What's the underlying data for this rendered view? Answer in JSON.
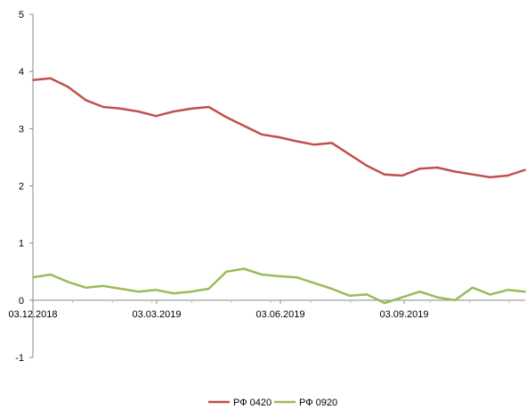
{
  "chart_data": {
    "type": "line",
    "ylim": [
      -1,
      5
    ],
    "yticks": [
      "-1",
      "0",
      "1",
      "2",
      "3",
      "4",
      "5"
    ],
    "xticks": [
      "03.12.2018",
      "03.03.2019",
      "03.06.2019",
      "03.09.2019"
    ],
    "grid": false,
    "legend": "bottom",
    "x": [
      "03.12.2018",
      "17.12.2018",
      "31.12.2018",
      "14.01.2019",
      "28.01.2019",
      "11.02.2019",
      "25.02.2019",
      "11.03.2019",
      "25.03.2019",
      "08.04.2019",
      "22.04.2019",
      "06.05.2019",
      "20.05.2019",
      "03.06.2019",
      "17.06.2019",
      "01.07.2019",
      "15.07.2019",
      "29.07.2019",
      "12.08.2019",
      "26.08.2019",
      "09.09.2019",
      "23.09.2019",
      "07.10.2019",
      "21.10.2019",
      "04.11.2019",
      "18.11.2019",
      "02.12.2019",
      "16.12.2019",
      "30.12.2019"
    ],
    "series": [
      {
        "name": "РФ 0420",
        "color": "#c0504d",
        "values": [
          3.85,
          3.88,
          3.73,
          3.5,
          3.38,
          3.35,
          3.3,
          3.22,
          3.3,
          3.35,
          3.38,
          3.2,
          3.05,
          2.9,
          2.85,
          2.78,
          2.72,
          2.75,
          2.55,
          2.35,
          2.2,
          2.18,
          2.3,
          2.32,
          2.25,
          2.2,
          2.15,
          2.18,
          2.28
        ]
      },
      {
        "name": "РФ 0920",
        "color": "#9bbb59",
        "values": [
          0.4,
          0.45,
          0.32,
          0.22,
          0.25,
          0.2,
          0.15,
          0.18,
          0.12,
          0.15,
          0.2,
          0.5,
          0.55,
          0.45,
          0.42,
          0.4,
          0.3,
          0.2,
          0.08,
          0.1,
          -0.05,
          0.05,
          0.15,
          0.05,
          0.0,
          0.22,
          0.1,
          0.18,
          0.15
        ]
      }
    ]
  }
}
